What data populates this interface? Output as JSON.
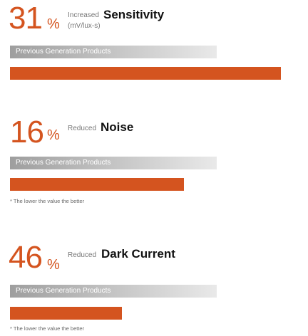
{
  "chart_data": [
    {
      "type": "bar",
      "big_value": "31",
      "percent_sign": "%",
      "qualifier": "Increased",
      "metric": "Sensitivity",
      "unit": "(mV/lux-s)",
      "previous_label": "Previous Generation Products",
      "previous_value": 100,
      "current_value": 131,
      "note": "",
      "colors": {
        "current": "#d4541f",
        "previous": "#b0b0b0"
      }
    },
    {
      "type": "bar",
      "big_value": "16",
      "percent_sign": "%",
      "qualifier": "Reduced",
      "metric": "Noise",
      "unit": "",
      "previous_label": "Previous Generation Products",
      "previous_value": 100,
      "current_value": 84,
      "note": "* The lower the value the better",
      "colors": {
        "current": "#d4541f",
        "previous": "#b0b0b0"
      }
    },
    {
      "type": "bar",
      "big_value": "46",
      "percent_sign": "%",
      "qualifier": "Reduced",
      "metric": "Dark Current",
      "unit": "",
      "previous_label": "Previous Generation Products",
      "previous_value": 100,
      "current_value": 54,
      "note": "* The lower the value the better",
      "colors": {
        "current": "#d4541f",
        "previous": "#b0b0b0"
      }
    }
  ]
}
